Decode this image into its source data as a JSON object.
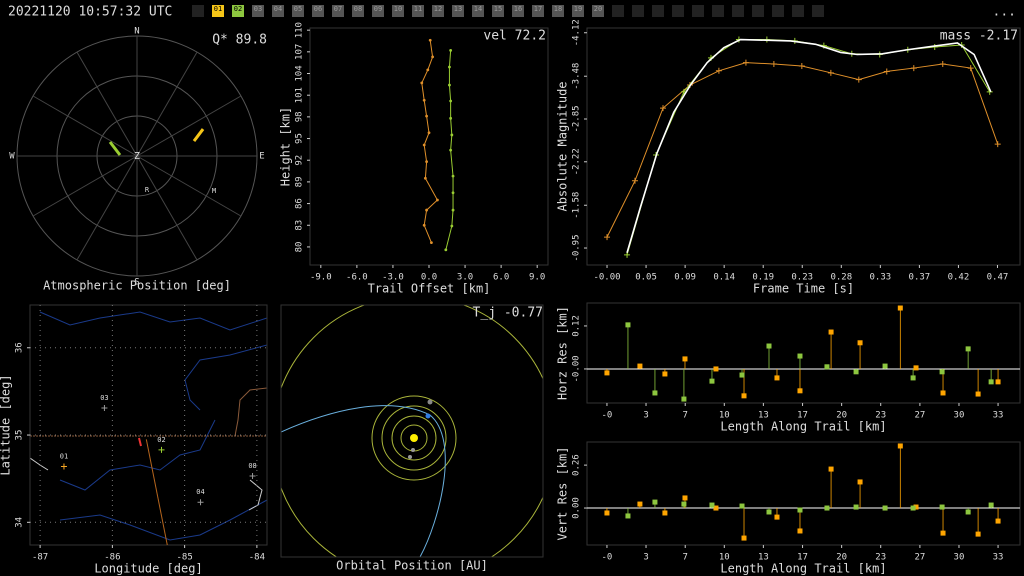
{
  "header": {
    "timestamp": "20221120 10:57:32 UTC",
    "stations": [
      {
        "label": "01",
        "color": "#f5c518"
      },
      {
        "label": "02",
        "color": "#8dc63f"
      },
      {
        "label": "03",
        "color": "#555"
      },
      {
        "label": "04",
        "color": "#555"
      },
      {
        "label": "05",
        "color": "#555"
      },
      {
        "label": "06",
        "color": "#555"
      },
      {
        "label": "07",
        "color": "#555"
      },
      {
        "label": "08",
        "color": "#555"
      },
      {
        "label": "09",
        "color": "#555"
      },
      {
        "label": "10",
        "color": "#555"
      },
      {
        "label": "11",
        "color": "#555"
      },
      {
        "label": "12",
        "color": "#555"
      },
      {
        "label": "13",
        "color": "#555"
      },
      {
        "label": "14",
        "color": "#555"
      },
      {
        "label": "15",
        "color": "#555"
      },
      {
        "label": "16",
        "color": "#555"
      },
      {
        "label": "17",
        "color": "#555"
      },
      {
        "label": "18",
        "color": "#555"
      },
      {
        "label": "19",
        "color": "#555"
      },
      {
        "label": "20",
        "color": "#555"
      }
    ],
    "menu": "..."
  },
  "chart_data": [
    {
      "type": "polar",
      "title": "Atmospheric Position [deg]",
      "annotation": "Q* 89.8",
      "directions": [
        "N",
        "E",
        "S",
        "W"
      ],
      "center_label": "Z",
      "series": [
        {
          "color": "#9acd32",
          "azimuth": [
            297.4,
            273.4
          ],
          "zenith": [
            22.8,
            12.8
          ]
        },
        {
          "color": "#f5c518",
          "azimuth": [
            75.3,
            67.8
          ],
          "zenith": [
            44.2,
            53.5
          ]
        }
      ],
      "stations": [
        {
          "label": "R",
          "azimuth": 163.6,
          "zenith": 26.6
        },
        {
          "label": "M",
          "azimuth": 114.4,
          "zenith": 63.4
        }
      ]
    },
    {
      "type": "line",
      "title": "vel 72.2",
      "xlabel": "Trail Offset [km]",
      "ylabel": "Height [km]",
      "xlim": [
        -9.9,
        9.9
      ],
      "ylim": [
        77.5,
        110.3
      ],
      "xticks": [
        {
          "value": -9,
          "label": "-9.0"
        },
        {
          "value": -6,
          "label": "-6.0"
        },
        {
          "value": -3,
          "label": "-3.0"
        },
        {
          "value": 0,
          "label": "0.0"
        },
        {
          "value": 3,
          "label": "3.0"
        },
        {
          "value": 6,
          "label": "6.0"
        },
        {
          "value": 9,
          "label": "9.0"
        }
      ],
      "yticks": [
        80,
        83,
        86,
        89,
        92,
        95,
        98,
        101,
        104,
        107,
        110
      ],
      "grid": false,
      "series": [
        {
          "color": "#e0902a",
          "marker": "dot",
          "line": true,
          "x": [
            0.1,
            0.3,
            -0.1,
            -0.6,
            -0.4,
            -0.2,
            0,
            -0.4,
            -0.2,
            -0.3,
            0.7,
            -0.2,
            -0.4,
            0.2
          ],
          "values": [
            108.6,
            106.3,
            104.5,
            102.7,
            100.3,
            98.1,
            95.8,
            94.1,
            91.8,
            89.5,
            86.5,
            85.1,
            83.0,
            80.6
          ]
        },
        {
          "color": "#9acd32",
          "marker": "dot",
          "line": true,
          "x": [
            1.8,
            1.7,
            1.7,
            1.8,
            1.8,
            1.9,
            1.8,
            2.0,
            2.0,
            2.0,
            1.9,
            1.4
          ],
          "values": [
            107.2,
            104.9,
            102.4,
            100.2,
            97.8,
            95.5,
            93.4,
            89.8,
            87.5,
            85.1,
            82.9,
            79.6
          ]
        }
      ]
    },
    {
      "type": "line",
      "title": "mass -2.17",
      "xlabel": "Frame Time [s]",
      "ylabel": "Absolute Magnitude",
      "xlim": [
        -0.024,
        0.495
      ],
      "ylim": [
        -0.7,
        -4.19
      ],
      "xticks": [
        {
          "value": 0,
          "label": "-0.00"
        },
        {
          "value": 0.0468,
          "label": "0.05"
        },
        {
          "value": 0.0936,
          "label": "0.09"
        },
        {
          "value": 0.1404,
          "label": "0.14"
        },
        {
          "value": 0.1872,
          "label": "0.19"
        },
        {
          "value": 0.234,
          "label": "0.23"
        },
        {
          "value": 0.2808,
          "label": "0.28"
        },
        {
          "value": 0.3276,
          "label": "0.33"
        },
        {
          "value": 0.3744,
          "label": "0.37"
        },
        {
          "value": 0.4212,
          "label": "0.42"
        },
        {
          "value": 0.468,
          "label": "0.47"
        }
      ],
      "yticks": [
        -4.12,
        -3.48,
        -2.85,
        -2.22,
        -1.58,
        -0.95
      ],
      "grid": false,
      "series": [
        {
          "color": "#e0902a",
          "marker": "plus",
          "line": true,
          "x": [
            0,
            0.0335,
            0.0671,
            0.0994,
            0.1341,
            0.1665,
            0.2,
            0.2335,
            0.2683,
            0.3018,
            0.3353,
            0.3677,
            0.4024,
            0.4359,
            0.4683
          ],
          "values": [
            -1.11,
            -1.94,
            -3.01,
            -3.35,
            -3.56,
            -3.68,
            -3.66,
            -3.63,
            -3.53,
            -3.43,
            -3.55,
            -3.6,
            -3.66,
            -3.6,
            -2.48
          ]
        },
        {
          "color": "#9acd32",
          "marker": "plus",
          "line": true,
          "x": [
            0.024,
            0.0587,
            0.0922,
            0.1246,
            0.1581,
            0.1916,
            0.2251,
            0.2599,
            0.2934,
            0.3269,
            0.3605,
            0.3928,
            0.4251,
            0.4587
          ],
          "values": [
            -0.85,
            -2.32,
            -3.25,
            -3.75,
            -4.02,
            -4.02,
            -4.0,
            -3.93,
            -3.81,
            -3.8,
            -3.87,
            -3.91,
            -3.94,
            -3.25
          ]
        },
        {
          "color": "#ffffff",
          "marker": "none",
          "line": true,
          "x": [
            0.024,
            0.04,
            0.06,
            0.08,
            0.1,
            0.12,
            0.14,
            0.16,
            0.19,
            0.22,
            0.25,
            0.28,
            0.3,
            0.33,
            0.36,
            0.39,
            0.42,
            0.44,
            0.46
          ],
          "values": [
            -0.88,
            -1.55,
            -2.35,
            -2.95,
            -3.35,
            -3.68,
            -3.9,
            -4.02,
            -4.01,
            -4.0,
            -3.95,
            -3.83,
            -3.8,
            -3.81,
            -3.87,
            -3.92,
            -3.97,
            -3.8,
            -3.25
          ]
        }
      ]
    },
    {
      "type": "map",
      "xlabel": "Longitude [deg]",
      "ylabel": "Latitude [deg]",
      "xlim": [
        -87.14,
        -83.86
      ],
      "ylim": [
        33.74,
        36.49
      ],
      "xticks": [
        -87,
        -86,
        -85,
        -84
      ],
      "yticks": [
        34,
        35,
        36
      ],
      "grid": true,
      "stations": [
        {
          "label": "01",
          "lon": -86.67,
          "lat": 34.64,
          "color": "#f5a623"
        },
        {
          "label": "02",
          "lon": -85.32,
          "lat": 34.83,
          "color": "#9acd32"
        },
        {
          "label": "03",
          "lon": -86.11,
          "lat": 35.31,
          "color": "#999"
        },
        {
          "label": "04",
          "lon": -84.78,
          "lat": 34.23,
          "color": "#999"
        },
        {
          "label": "08",
          "lon": -84.06,
          "lat": 34.53,
          "color": "#999"
        }
      ],
      "trajectory": {
        "color": "#b5651d",
        "lon": [
          -85.53,
          -85.24
        ],
        "lat": [
          34.95,
          33.74
        ]
      }
    },
    {
      "type": "orbit",
      "title": "Orbital Position [AU]",
      "annotation": "T_j -0.77"
    },
    {
      "type": "stem",
      "xlabel": "Length Along Trail [km]",
      "ylabel": "Horz Res [km]",
      "xlim": [
        -1.7,
        35.2
      ],
      "ylim": [
        -0.095,
        0.184
      ],
      "xticks": [
        {
          "value": 0,
          "label": "-0"
        },
        {
          "value": 3.33,
          "label": "3"
        },
        {
          "value": 6.67,
          "label": "7"
        },
        10,
        {
          "value": 13.33,
          "label": "13"
        },
        {
          "value": 16.67,
          "label": "17"
        },
        20,
        {
          "value": 23.33,
          "label": "23"
        },
        {
          "value": 26.67,
          "label": "27"
        },
        30,
        {
          "value": 33.33,
          "label": "33"
        }
      ],
      "yticks": [
        {
          "value": 0,
          "label": "-0.00"
        },
        0.12
      ],
      "grid": false,
      "series": [
        {
          "color": "#ffa500",
          "x": [
            0,
            2.81,
            4.94,
            6.65,
            9.29,
            11.68,
            14.49,
            16.45,
            19.1,
            21.57,
            25.0,
            26.34,
            28.64,
            31.63,
            33.33
          ],
          "values": [
            -0.011,
            0.008,
            -0.014,
            0.028,
            0.0,
            -0.075,
            -0.025,
            -0.061,
            0.103,
            0.073,
            0.17,
            0.003,
            -0.067,
            -0.07,
            -0.036
          ]
        },
        {
          "color": "#8dc63f",
          "x": [
            1.79,
            4.09,
            6.56,
            8.95,
            11.51,
            13.81,
            16.45,
            18.75,
            21.23,
            23.7,
            26.09,
            28.56,
            30.78,
            32.74
          ],
          "values": [
            0.123,
            -0.067,
            -0.084,
            -0.034,
            -0.017,
            0.064,
            0.036,
            0.006,
            -0.008,
            0.008,
            -0.025,
            -0.008,
            0.056,
            -0.036
          ]
        }
      ]
    },
    {
      "type": "stem",
      "xlabel": "Length Along Trail [km]",
      "ylabel": "Vert Res [km]",
      "xlim": [
        -1.7,
        35.2
      ],
      "ylim": [
        -0.224,
        0.4
      ],
      "xticks": [
        {
          "value": 0,
          "label": "-0"
        },
        {
          "value": 3.33,
          "label": "3"
        },
        {
          "value": 6.67,
          "label": "7"
        },
        10,
        {
          "value": 13.33,
          "label": "13"
        },
        {
          "value": 16.67,
          "label": "17"
        },
        20,
        {
          "value": 23.33,
          "label": "23"
        },
        {
          "value": 26.67,
          "label": "27"
        },
        30,
        {
          "value": 33.33,
          "label": "33"
        }
      ],
      "yticks": [
        {
          "value": 0,
          "label": "0.00"
        },
        0.26
      ],
      "grid": false,
      "series": [
        {
          "color": "#ffa500",
          "x": [
            0,
            2.81,
            4.94,
            6.65,
            9.29,
            11.68,
            14.49,
            16.45,
            19.1,
            21.57,
            25.0,
            26.34,
            28.64,
            31.63,
            33.33
          ],
          "values": [
            -0.03,
            0.024,
            -0.03,
            0.061,
            0,
            -0.182,
            -0.055,
            -0.139,
            0.236,
            0.158,
            0.376,
            0.006,
            -0.152,
            -0.158,
            -0.079
          ]
        },
        {
          "color": "#8dc63f",
          "x": [
            1.79,
            4.09,
            6.56,
            8.95,
            11.51,
            13.81,
            16.45,
            18.75,
            21.23,
            23.7,
            26.09,
            28.56,
            30.78,
            32.74
          ],
          "values": [
            -0.048,
            0.036,
            0.024,
            0.018,
            0.012,
            -0.024,
            -0.012,
            0,
            0.006,
            0,
            0,
            0.006,
            -0.024,
            0.018
          ]
        }
      ]
    }
  ]
}
